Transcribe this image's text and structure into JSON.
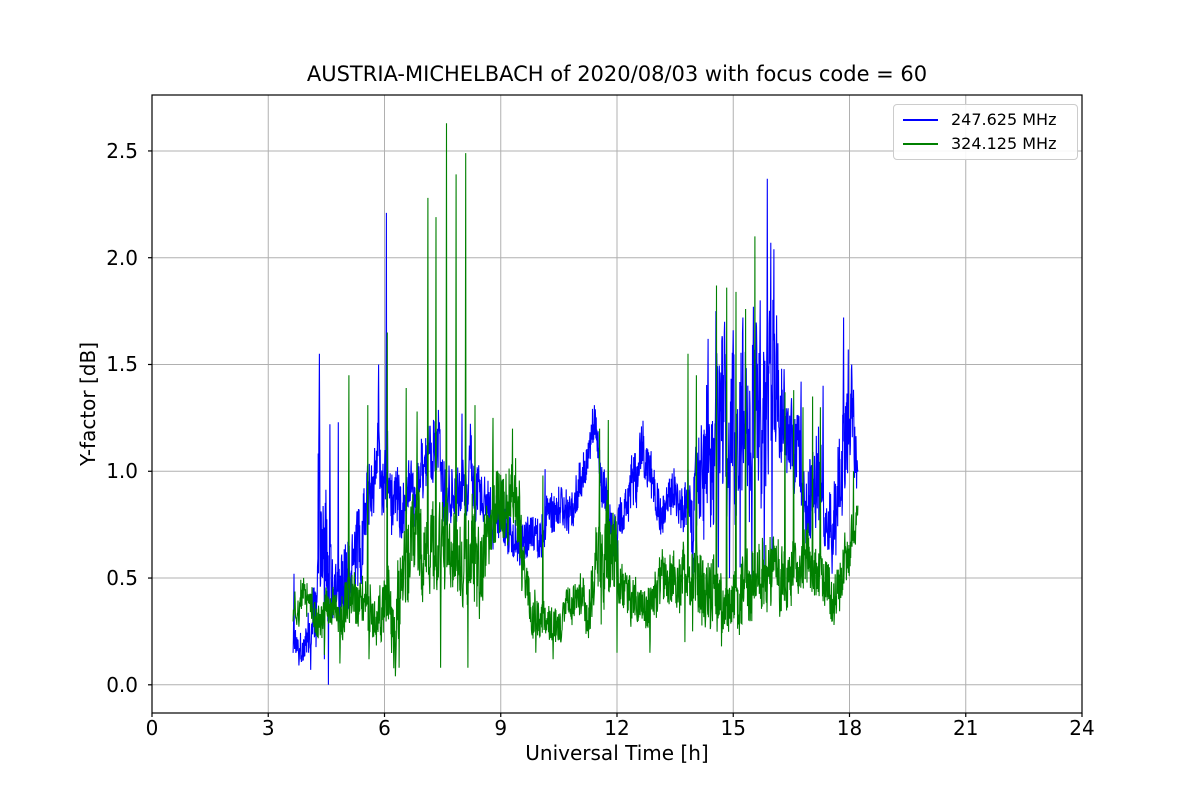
{
  "chart_data": {
    "type": "line",
    "title": "AUSTRIA-MICHELBACH of 2020/08/03 with focus code = 60",
    "xlabel": "Universal Time [h]",
    "ylabel": "Y-factor [dB]",
    "xlim": [
      0,
      24
    ],
    "ylim": [
      -0.132,
      2.762
    ],
    "x_ticks": [
      0,
      3,
      6,
      9,
      12,
      15,
      18,
      21,
      24
    ],
    "y_ticks": [
      0.0,
      0.5,
      1.0,
      1.5,
      2.0,
      2.5
    ],
    "grid": true,
    "grid_color": "#b0b0b0",
    "axis_color": "#000000",
    "legend_position": "upper right",
    "sampling_step_h": 0.008,
    "series": [
      {
        "name": "247.625 MHz",
        "color": "#0000ff",
        "seed": 1337,
        "t_start": 3.64,
        "t_end": 18.22,
        "envelope_keypoints": [
          [
            3.64,
            0.2,
            0.08
          ],
          [
            4.0,
            0.22,
            0.1
          ],
          [
            4.2,
            0.3,
            0.2
          ],
          [
            4.32,
            0.7,
            0.55
          ],
          [
            4.45,
            0.5,
            0.45
          ],
          [
            4.57,
            0.3,
            0.3
          ],
          [
            4.7,
            0.5,
            0.22
          ],
          [
            5.0,
            0.55,
            0.22
          ],
          [
            5.3,
            0.62,
            0.22
          ],
          [
            5.6,
            0.85,
            0.2
          ],
          [
            5.85,
            1.05,
            0.18
          ],
          [
            6.1,
            1.0,
            0.2
          ],
          [
            6.3,
            0.75,
            0.22
          ],
          [
            6.5,
            0.8,
            0.15
          ],
          [
            6.8,
            0.92,
            0.15
          ],
          [
            7.1,
            1.02,
            0.18
          ],
          [
            7.35,
            1.08,
            0.18
          ],
          [
            7.6,
            0.95,
            0.18
          ],
          [
            7.9,
            0.92,
            0.16
          ],
          [
            8.2,
            1.0,
            0.18
          ],
          [
            8.5,
            0.85,
            0.14
          ],
          [
            8.8,
            0.78,
            0.12
          ],
          [
            9.05,
            0.85,
            0.15
          ],
          [
            9.35,
            0.72,
            0.13
          ],
          [
            9.7,
            0.74,
            0.12
          ],
          [
            10.1,
            0.74,
            0.12
          ],
          [
            10.5,
            0.8,
            0.12
          ],
          [
            10.9,
            0.9,
            0.12
          ],
          [
            11.2,
            1.02,
            0.12
          ],
          [
            11.42,
            1.2,
            0.1
          ],
          [
            11.6,
            1.0,
            0.15
          ],
          [
            11.85,
            0.74,
            0.12
          ],
          [
            12.15,
            0.76,
            0.12
          ],
          [
            12.45,
            0.95,
            0.14
          ],
          [
            12.65,
            1.08,
            0.13
          ],
          [
            12.9,
            0.92,
            0.14
          ],
          [
            13.15,
            0.76,
            0.12
          ],
          [
            13.45,
            0.95,
            0.12
          ],
          [
            13.7,
            0.88,
            0.14
          ],
          [
            13.95,
            0.8,
            0.2
          ],
          [
            14.2,
            1.1,
            0.35
          ],
          [
            14.5,
            1.25,
            0.42
          ],
          [
            14.8,
            1.22,
            0.45
          ],
          [
            15.1,
            1.18,
            0.45
          ],
          [
            15.4,
            1.22,
            0.45
          ],
          [
            15.7,
            1.28,
            0.45
          ],
          [
            15.95,
            1.5,
            0.42
          ],
          [
            16.15,
            1.3,
            0.35
          ],
          [
            16.4,
            1.22,
            0.2
          ],
          [
            16.7,
            1.05,
            0.25
          ],
          [
            17.0,
            0.95,
            0.28
          ],
          [
            17.3,
            0.88,
            0.25
          ],
          [
            17.55,
            0.72,
            0.18
          ],
          [
            17.8,
            0.95,
            0.3
          ],
          [
            18.0,
            1.2,
            0.28
          ],
          [
            18.15,
            1.1,
            0.2
          ],
          [
            18.22,
            0.98,
            0.1
          ]
        ],
        "spikes": [
          [
            3.66,
            0.52
          ],
          [
            4.32,
            1.55
          ],
          [
            4.59,
            1.22
          ],
          [
            4.81,
            1.23
          ],
          [
            5.85,
            1.5
          ],
          [
            6.05,
            2.21
          ],
          [
            8.0,
            1.27
          ],
          [
            10.14,
            1.01
          ],
          [
            11.42,
            1.31
          ],
          [
            12.63,
            1.21
          ],
          [
            14.35,
            1.62
          ],
          [
            14.55,
            1.75
          ],
          [
            14.78,
            1.7
          ],
          [
            15.0,
            1.66
          ],
          [
            15.25,
            1.72
          ],
          [
            15.52,
            1.77
          ],
          [
            15.7,
            1.8
          ],
          [
            15.88,
            2.37
          ],
          [
            15.97,
            2.07
          ],
          [
            16.05,
            2.04
          ],
          [
            16.12,
            1.73
          ],
          [
            16.75,
            1.42
          ],
          [
            17.32,
            1.4
          ],
          [
            17.85,
            1.72
          ],
          [
            17.97,
            1.57
          ],
          [
            18.06,
            1.5
          ]
        ],
        "dips": [
          [
            4.1,
            0.07
          ],
          [
            4.45,
            0.12
          ],
          [
            4.55,
            0.0
          ],
          [
            12.0,
            0.52
          ],
          [
            13.95,
            0.45
          ],
          [
            14.62,
            0.55
          ],
          [
            14.9,
            0.5
          ],
          [
            15.18,
            0.55
          ],
          [
            15.48,
            0.5
          ],
          [
            15.8,
            0.53
          ],
          [
            16.0,
            0.58
          ],
          [
            16.9,
            0.6
          ],
          [
            17.55,
            0.52
          ]
        ]
      },
      {
        "name": "324.125 MHz",
        "color": "#008000",
        "seed": 4242,
        "t_start": 3.64,
        "t_end": 18.22,
        "envelope_keypoints": [
          [
            3.64,
            0.33,
            0.1
          ],
          [
            4.0,
            0.38,
            0.1
          ],
          [
            4.3,
            0.36,
            0.12
          ],
          [
            4.6,
            0.33,
            0.12
          ],
          [
            4.9,
            0.4,
            0.15
          ],
          [
            5.15,
            0.42,
            0.15
          ],
          [
            5.45,
            0.36,
            0.14
          ],
          [
            5.75,
            0.3,
            0.14
          ],
          [
            6.05,
            0.38,
            0.2
          ],
          [
            6.3,
            0.28,
            0.2
          ],
          [
            6.55,
            0.52,
            0.22
          ],
          [
            6.8,
            0.68,
            0.25
          ],
          [
            7.05,
            0.58,
            0.24
          ],
          [
            7.35,
            0.52,
            0.24
          ],
          [
            7.6,
            0.58,
            0.24
          ],
          [
            7.9,
            0.52,
            0.24
          ],
          [
            8.2,
            0.55,
            0.26
          ],
          [
            8.5,
            0.62,
            0.26
          ],
          [
            8.8,
            0.78,
            0.22
          ],
          [
            9.1,
            0.8,
            0.22
          ],
          [
            9.35,
            0.88,
            0.2
          ],
          [
            9.55,
            0.6,
            0.2
          ],
          [
            9.8,
            0.35,
            0.12
          ],
          [
            10.2,
            0.3,
            0.1
          ],
          [
            10.6,
            0.33,
            0.1
          ],
          [
            11.0,
            0.36,
            0.12
          ],
          [
            11.35,
            0.42,
            0.16
          ],
          [
            11.65,
            0.62,
            0.3
          ],
          [
            11.9,
            0.52,
            0.25
          ],
          [
            12.15,
            0.45,
            0.14
          ],
          [
            12.5,
            0.43,
            0.12
          ],
          [
            12.85,
            0.38,
            0.14
          ],
          [
            13.15,
            0.5,
            0.15
          ],
          [
            13.4,
            0.58,
            0.15
          ],
          [
            13.65,
            0.5,
            0.15
          ],
          [
            13.9,
            0.48,
            0.18
          ],
          [
            14.2,
            0.52,
            0.2
          ],
          [
            14.55,
            0.45,
            0.18
          ],
          [
            14.9,
            0.38,
            0.14
          ],
          [
            15.2,
            0.45,
            0.18
          ],
          [
            15.55,
            0.55,
            0.2
          ],
          [
            15.85,
            0.58,
            0.2
          ],
          [
            16.15,
            0.55,
            0.18
          ],
          [
            16.5,
            0.55,
            0.16
          ],
          [
            16.85,
            0.6,
            0.16
          ],
          [
            17.15,
            0.58,
            0.16
          ],
          [
            17.45,
            0.48,
            0.14
          ],
          [
            17.65,
            0.38,
            0.12
          ],
          [
            17.9,
            0.55,
            0.14
          ],
          [
            18.1,
            0.7,
            0.12
          ],
          [
            18.22,
            0.8,
            0.08
          ]
        ],
        "spikes": [
          [
            5.08,
            1.45
          ],
          [
            5.57,
            1.31
          ],
          [
            6.07,
            1.65
          ],
          [
            6.56,
            1.39
          ],
          [
            6.84,
            1.28
          ],
          [
            7.12,
            2.28
          ],
          [
            7.33,
            2.19
          ],
          [
            7.6,
            2.63
          ],
          [
            7.85,
            2.39
          ],
          [
            8.1,
            2.49
          ],
          [
            8.34,
            1.31
          ],
          [
            8.8,
            1.25
          ],
          [
            9.3,
            1.2
          ],
          [
            10.09,
            0.98
          ],
          [
            11.55,
            1.2
          ],
          [
            11.78,
            1.24
          ],
          [
            13.83,
            1.55
          ],
          [
            14.05,
            1.45
          ],
          [
            14.57,
            1.87
          ],
          [
            14.83,
            1.86
          ],
          [
            15.07,
            1.84
          ],
          [
            15.32,
            1.76
          ],
          [
            15.56,
            2.1
          ],
          [
            16.34,
            1.37
          ],
          [
            16.56,
            1.38
          ],
          [
            16.8,
            1.3
          ],
          [
            17.05,
            1.35
          ],
          [
            17.25,
            1.3
          ],
          [
            18.1,
            1.0
          ]
        ],
        "dips": [
          [
            4.45,
            0.14
          ],
          [
            4.85,
            0.1
          ],
          [
            5.6,
            0.12
          ],
          [
            6.28,
            0.04
          ],
          [
            6.38,
            0.08
          ],
          [
            7.45,
            0.08
          ],
          [
            8.15,
            0.08
          ],
          [
            9.9,
            0.15
          ],
          [
            10.35,
            0.12
          ],
          [
            12.0,
            0.15
          ],
          [
            12.85,
            0.15
          ],
          [
            13.75,
            0.2
          ],
          [
            13.95,
            0.25
          ],
          [
            14.7,
            0.18
          ],
          [
            17.6,
            0.28
          ]
        ]
      }
    ]
  }
}
